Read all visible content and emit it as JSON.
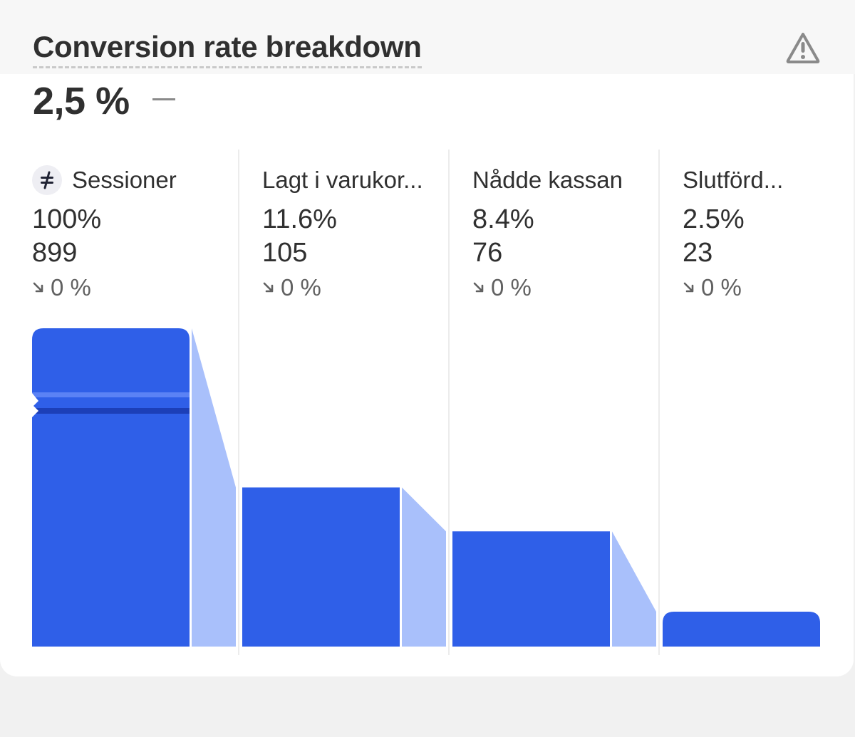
{
  "title": "Conversion rate breakdown",
  "headline": {
    "value": "2,5 %"
  },
  "icons": {
    "warning": "warning-triangle-icon",
    "source": "strike-equal-icon",
    "change": "arrow-down-right-icon"
  },
  "colors": {
    "bar": "#2f5fe8",
    "connector": "#a9c0fb",
    "bar_highlight": "#5b82f5",
    "bar_dark": "#1c3fb8"
  },
  "steps": [
    {
      "label": "Sessioner",
      "percent": "100%",
      "count": "899",
      "change": "0 %"
    },
    {
      "label": "Lagt i varukor...",
      "percent": "11.6%",
      "count": "105",
      "change": "0 %"
    },
    {
      "label": "Nådde kassan",
      "percent": "8.4%",
      "count": "76",
      "change": "0 %"
    },
    {
      "label": "Slutförd...",
      "percent": "2.5%",
      "count": "23",
      "change": "0 %"
    }
  ],
  "chart_data": {
    "type": "bar",
    "categories": [
      "Sessioner",
      "Lagt i varukor...",
      "Nådde kassan",
      "Slutförd..."
    ],
    "values": [
      899,
      105,
      76,
      23
    ],
    "percents": [
      100,
      11.6,
      8.4,
      2.5
    ],
    "axis_break": true,
    "grid": false
  }
}
